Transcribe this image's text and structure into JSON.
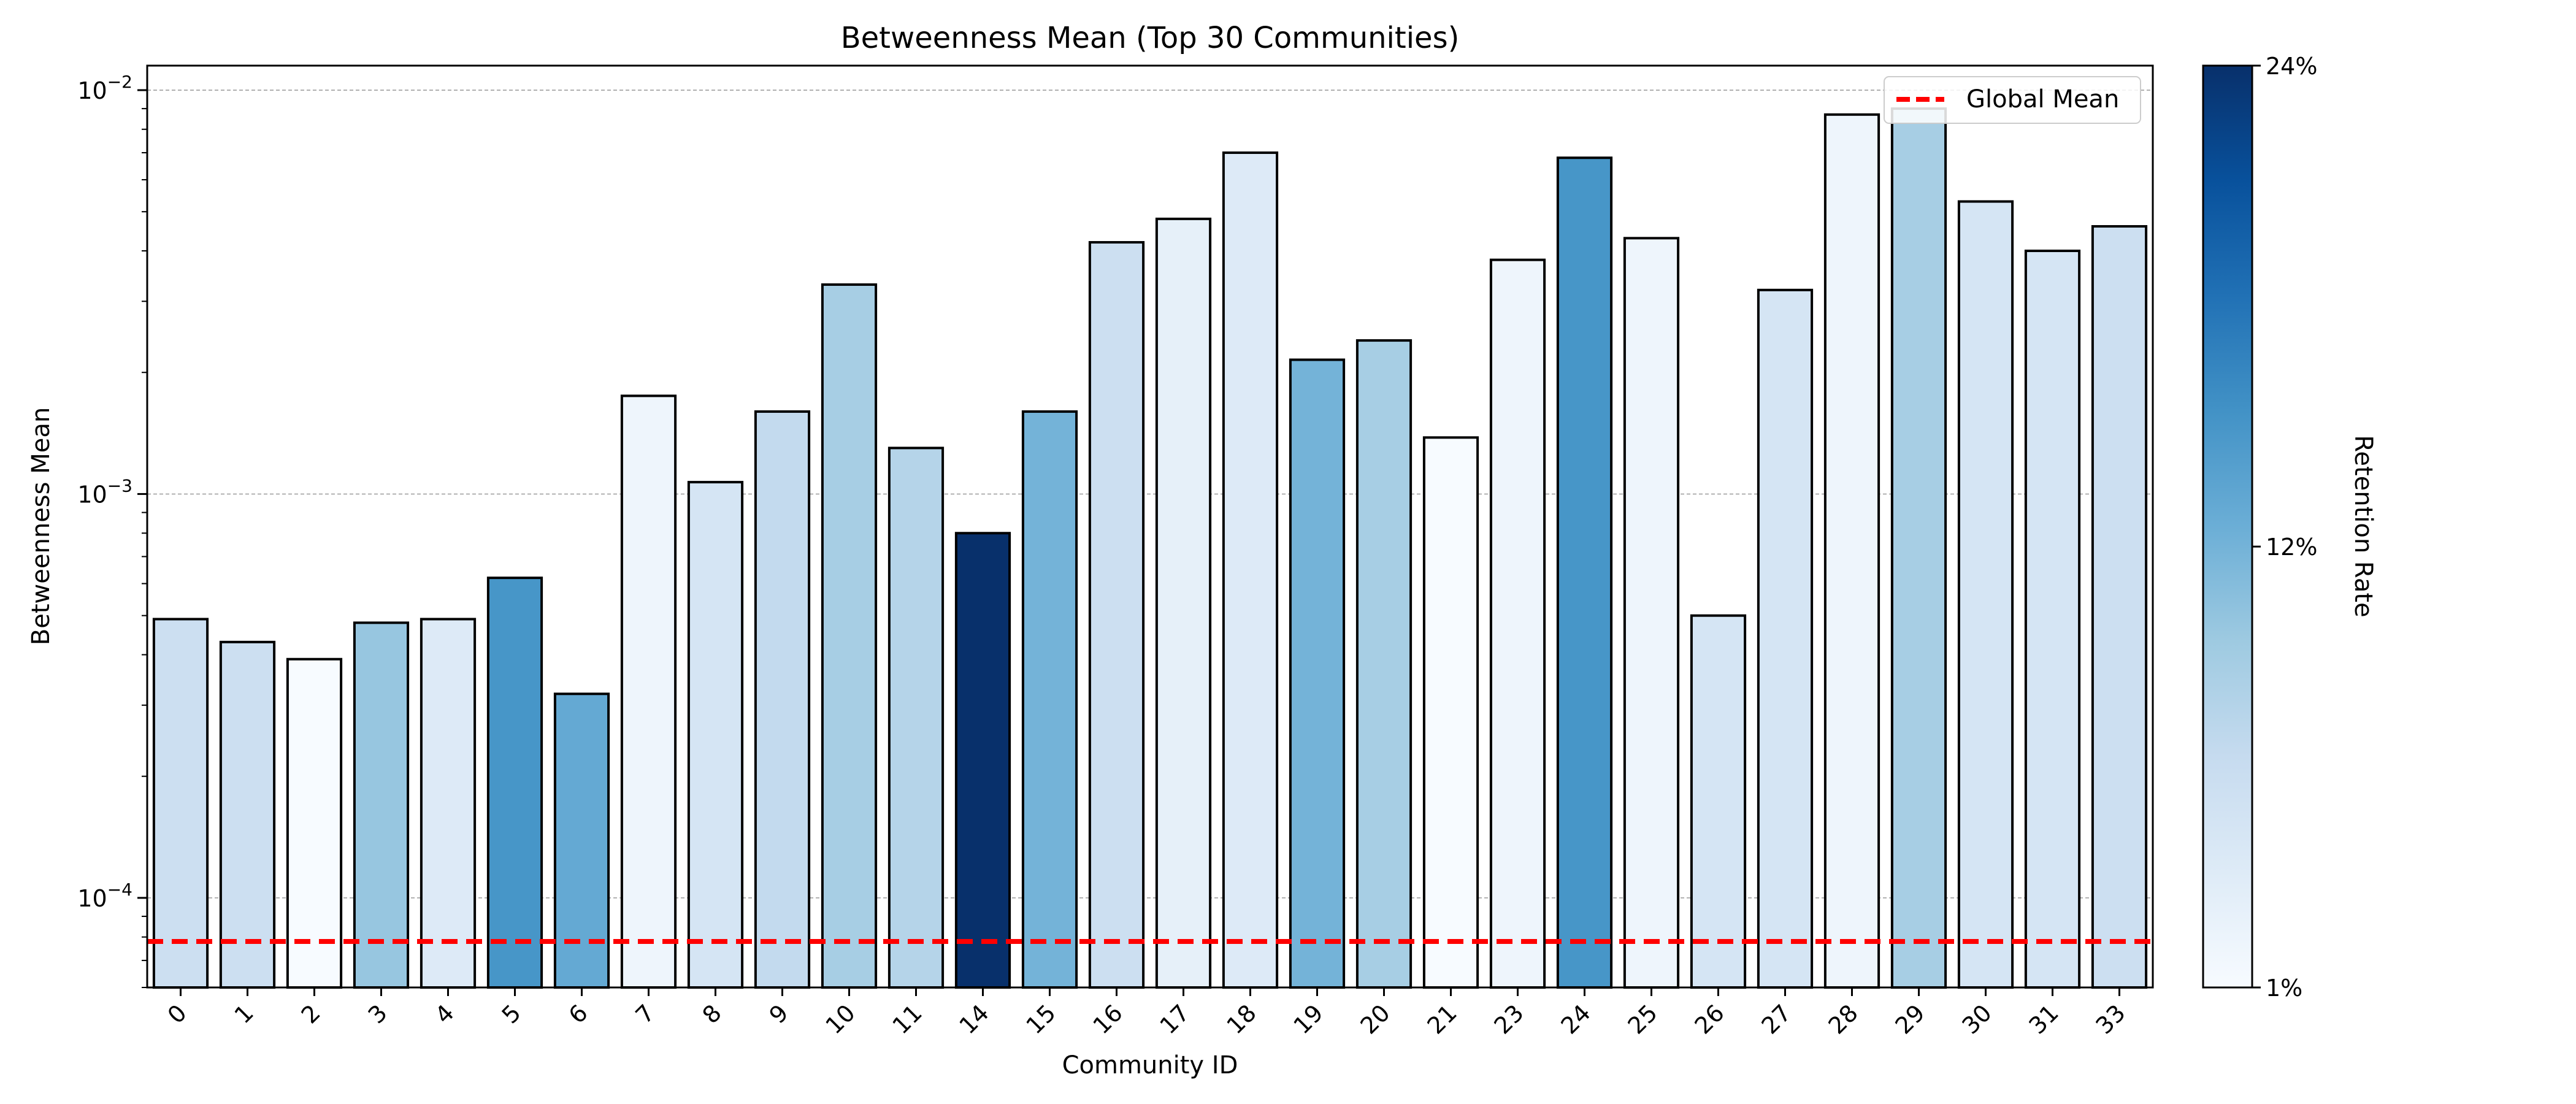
{
  "chart_data": {
    "type": "bar",
    "title": "Betweenness Mean (Top 30 Communities)",
    "xlabel": "Community ID",
    "ylabel": "Betweenness Mean",
    "yscale": "log",
    "ylim": [
      6e-05,
      0.0115
    ],
    "yticks": [
      {
        "value": 0.0001,
        "base": "10",
        "exp": "−4"
      },
      {
        "value": 0.001,
        "base": "10",
        "exp": "−3"
      },
      {
        "value": 0.01,
        "base": "10",
        "exp": "−2"
      }
    ],
    "grid": "horizontal-major",
    "categories": [
      "0",
      "1",
      "2",
      "3",
      "4",
      "5",
      "6",
      "7",
      "8",
      "9",
      "10",
      "11",
      "14",
      "15",
      "16",
      "17",
      "18",
      "19",
      "20",
      "21",
      "23",
      "24",
      "25",
      "26",
      "27",
      "28",
      "29",
      "30",
      "31",
      "33"
    ],
    "values": [
      0.00049,
      0.00043,
      0.00039,
      0.00048,
      0.00049,
      0.00062,
      0.00032,
      0.00175,
      0.00107,
      0.0016,
      0.0033,
      0.0013,
      0.0008,
      0.0016,
      0.0042,
      0.0048,
      0.007,
      0.00215,
      0.0024,
      0.00138,
      0.0038,
      0.0068,
      0.0043,
      0.0005,
      0.0032,
      0.0087,
      0.009,
      0.0053,
      0.004,
      0.0046
    ],
    "retention_rate": [
      6,
      6,
      1,
      10,
      4,
      15,
      13,
      2,
      5,
      7,
      9,
      8,
      24,
      12,
      6,
      3,
      4,
      12,
      9,
      1,
      2,
      15,
      2,
      5,
      5,
      2,
      9,
      5,
      5,
      6
    ],
    "reference_line": {
      "label": "Global Mean",
      "value": 7.8e-05,
      "color": "#ff0000",
      "style": "dashed"
    },
    "legend": {
      "placement": "top-right",
      "entries": [
        "Global Mean"
      ]
    },
    "colorbar": {
      "label": "Retention Rate",
      "min": 1,
      "max": 24,
      "tick_labels": [
        "24%",
        "12%",
        "1%"
      ],
      "tick_values": [
        24,
        12,
        1
      ],
      "colormap": "Blues",
      "colors": [
        "#f7fbff",
        "#deebf7",
        "#c6dbef",
        "#9ecae1",
        "#6baed6",
        "#4292c6",
        "#2171b5",
        "#08519c",
        "#08306b"
      ]
    }
  }
}
